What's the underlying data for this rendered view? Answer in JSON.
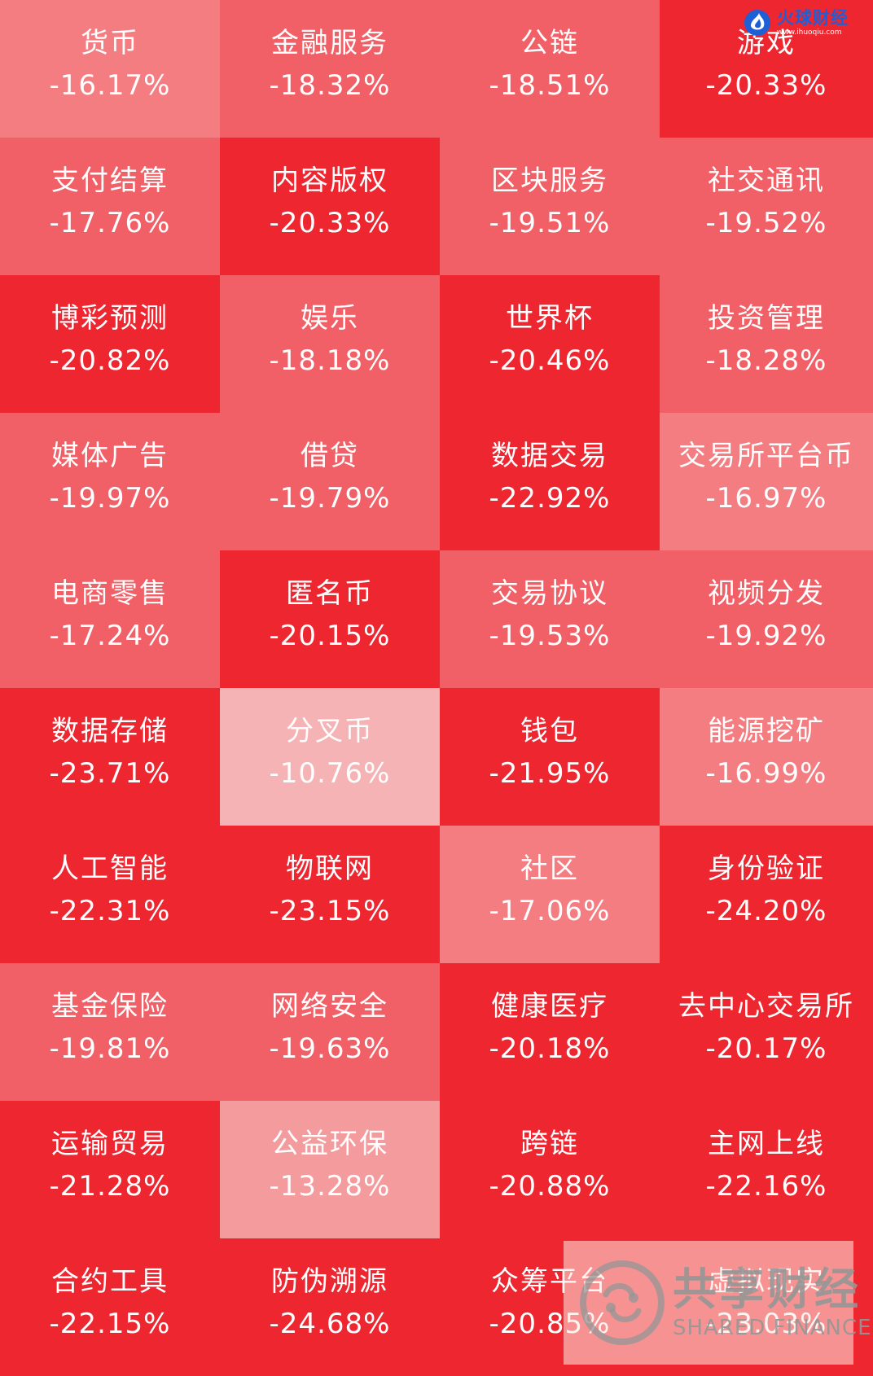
{
  "heatmap": {
    "colors": {
      "deep": "#ed2630",
      "medium": "#f26067",
      "light": "#f47d82",
      "pale": "#f49b9e",
      "palest": "#f5b3b5"
    },
    "tiles": [
      {
        "name": "货币",
        "change": "-16.17%",
        "shade": "light"
      },
      {
        "name": "金融服务",
        "change": "-18.32%",
        "shade": "medium"
      },
      {
        "name": "公链",
        "change": "-18.51%",
        "shade": "medium"
      },
      {
        "name": "游戏",
        "change": "-20.33%",
        "shade": "deep"
      },
      {
        "name": "支付结算",
        "change": "-17.76%",
        "shade": "medium"
      },
      {
        "name": "内容版权",
        "change": "-20.33%",
        "shade": "deep"
      },
      {
        "name": "区块服务",
        "change": "-19.51%",
        "shade": "medium"
      },
      {
        "name": "社交通讯",
        "change": "-19.52%",
        "shade": "medium"
      },
      {
        "name": "博彩预测",
        "change": "-20.82%",
        "shade": "deep"
      },
      {
        "name": "娱乐",
        "change": "-18.18%",
        "shade": "medium"
      },
      {
        "name": "世界杯",
        "change": "-20.46%",
        "shade": "deep"
      },
      {
        "name": "投资管理",
        "change": "-18.28%",
        "shade": "medium"
      },
      {
        "name": "媒体广告",
        "change": "-19.97%",
        "shade": "medium"
      },
      {
        "name": "借贷",
        "change": "-19.79%",
        "shade": "medium"
      },
      {
        "name": "数据交易",
        "change": "-22.92%",
        "shade": "deep"
      },
      {
        "name": "交易所平台币",
        "change": "-16.97%",
        "shade": "light"
      },
      {
        "name": "电商零售",
        "change": "-17.24%",
        "shade": "medium"
      },
      {
        "name": "匿名币",
        "change": "-20.15%",
        "shade": "deep"
      },
      {
        "name": "交易协议",
        "change": "-19.53%",
        "shade": "medium"
      },
      {
        "name": "视频分发",
        "change": "-19.92%",
        "shade": "medium"
      },
      {
        "name": "数据存储",
        "change": "-23.71%",
        "shade": "deep"
      },
      {
        "name": "分叉币",
        "change": "-10.76%",
        "shade": "palest"
      },
      {
        "name": "钱包",
        "change": "-21.95%",
        "shade": "deep"
      },
      {
        "name": "能源挖矿",
        "change": "-16.99%",
        "shade": "light"
      },
      {
        "name": "人工智能",
        "change": "-22.31%",
        "shade": "deep"
      },
      {
        "name": "物联网",
        "change": "-23.15%",
        "shade": "deep"
      },
      {
        "name": "社区",
        "change": "-17.06%",
        "shade": "light"
      },
      {
        "name": "身份验证",
        "change": "-24.20%",
        "shade": "deep"
      },
      {
        "name": "基金保险",
        "change": "-19.81%",
        "shade": "medium"
      },
      {
        "name": "网络安全",
        "change": "-19.63%",
        "shade": "medium"
      },
      {
        "name": "健康医疗",
        "change": "-20.18%",
        "shade": "deep"
      },
      {
        "name": "去中心交易所",
        "change": "-20.17%",
        "shade": "deep"
      },
      {
        "name": "运输贸易",
        "change": "-21.28%",
        "shade": "deep"
      },
      {
        "name": "公益环保",
        "change": "-13.28%",
        "shade": "pale"
      },
      {
        "name": "跨链",
        "change": "-20.88%",
        "shade": "deep"
      },
      {
        "name": "主网上线",
        "change": "-22.16%",
        "shade": "deep"
      },
      {
        "name": "合约工具",
        "change": "-22.15%",
        "shade": "deep"
      },
      {
        "name": "防伪溯源",
        "change": "-24.68%",
        "shade": "deep"
      },
      {
        "name": "众筹平台",
        "change": "-20.85%",
        "shade": "deep"
      },
      {
        "name": "虚拟现实",
        "change": "-23.03%",
        "shade": "deep"
      }
    ]
  },
  "brand_top": {
    "name": "火球财经",
    "url": "www.ihuoqiu.com",
    "logo_icon": "flame-ball-icon",
    "color": "#1f5fd6"
  },
  "watermark": {
    "cn": "共享财经",
    "en": "SHARED FINANCE",
    "logo_icon": "shared-finance-logo-icon"
  }
}
